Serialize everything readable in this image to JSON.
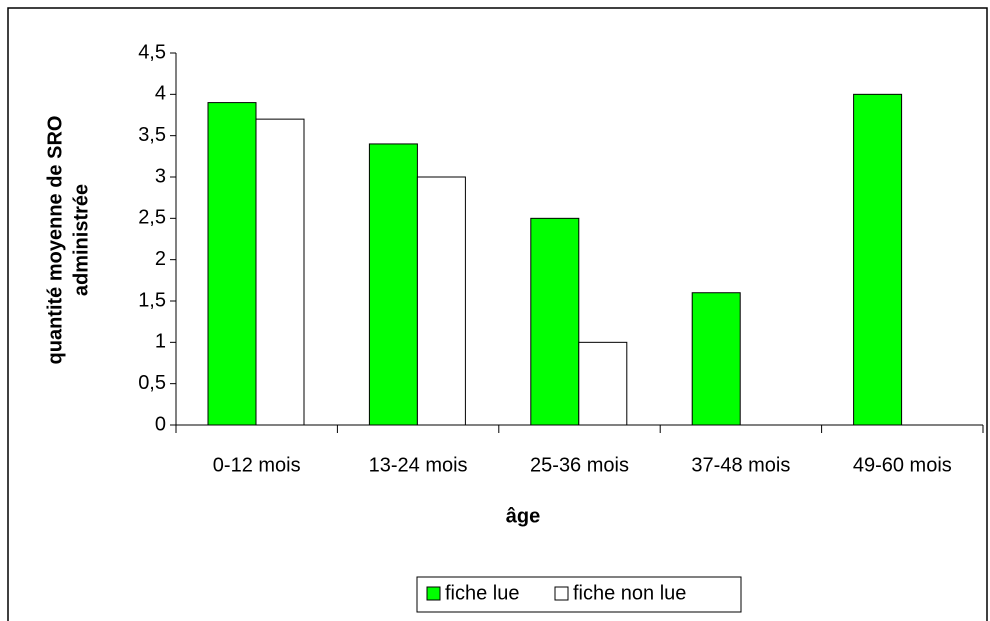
{
  "chart_data": {
    "type": "bar",
    "xlabel": "âge",
    "ylabel": [
      "quantité moyenne de SRO",
      "administrée"
    ],
    "categories": [
      "0-12 mois",
      "13-24 mois",
      "25-36 mois",
      "37-48 mois",
      "49-60 mois"
    ],
    "series": [
      {
        "name": "fiche lue",
        "color": "#00ff00",
        "values": [
          3.9,
          3.4,
          2.5,
          1.6,
          4.0
        ]
      },
      {
        "name": "fiche non lue",
        "color": "#ffffff",
        "values": [
          3.7,
          3.0,
          1.0,
          null,
          null
        ]
      }
    ],
    "ylim": [
      0,
      4.5
    ],
    "yticks": [
      0,
      {
        "value": 0.5,
        "label": "0,5"
      },
      1,
      {
        "value": 1.5,
        "label": "1,5"
      },
      2,
      {
        "value": 2.5,
        "label": "2,5"
      },
      3,
      {
        "value": 3.5,
        "label": "3,5"
      },
      4,
      {
        "value": 4.5,
        "label": "4,5"
      }
    ],
    "legend": "bottom"
  }
}
